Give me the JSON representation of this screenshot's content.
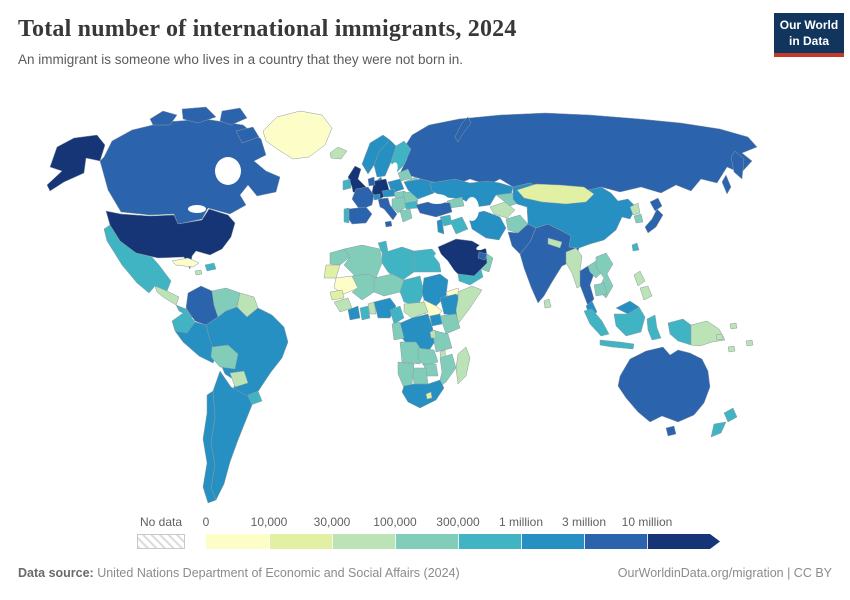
{
  "header": {
    "title": "Total number of international immigrants, 2024",
    "subtitle": "An immigrant is someone who lives in a country that they were not born in.",
    "logo": {
      "line1": "Our World",
      "line2": "in Data",
      "bg_color": "#12355e",
      "accent_color": "#c23a2b"
    }
  },
  "legend": {
    "no_data_label": "No data",
    "tick_labels": [
      "0",
      "10,000",
      "30,000",
      "100,000",
      "300,000",
      "1 million",
      "3 million",
      "10 million"
    ]
  },
  "footer": {
    "source_label": "Data source:",
    "source_text": " United Nations Department of Economic and Social Affairs (2024)",
    "link_text": "OurWorldinData.org/migration | CC BY"
  },
  "map": {
    "ocean_color": "#ffffff",
    "border_color": "#8e9ba6",
    "no_data_color": "#ececec"
  },
  "chart_data": {
    "type": "heatmap",
    "subtype": "world-choropleth",
    "title": "Total number of international immigrants, 2024",
    "year": 2024,
    "unit": "people",
    "legend_position": "bottom",
    "bin_edges": [
      "0",
      "10,000",
      "30,000",
      "100,000",
      "300,000",
      "1 million",
      "3 million",
      "10 million"
    ],
    "bin_labels": [
      "0–10,000",
      "10,000–30,000",
      "30,000–100,000",
      "100,000–300,000",
      "300,000–1 million",
      "1–3 million",
      "3–10 million",
      "10 million+"
    ],
    "bin_colors": [
      "#fdfdc8",
      "#e1f0a3",
      "#bbe3b5",
      "#82cdb9",
      "#41b4c4",
      "#2590c1",
      "#2b63ac",
      "#153576"
    ],
    "no_data_label": "No data",
    "regions": {
      "usa": {
        "name": "United States",
        "bin": 7
      },
      "canada": {
        "name": "Canada",
        "bin": 6
      },
      "greenland": {
        "name": "Greenland",
        "bin": 0
      },
      "mexico": {
        "name": "Mexico",
        "bin": 4
      },
      "central-america": {
        "name": "Guatemala, Honduras & Nicaragua",
        "bin": 2
      },
      "panama-costarica": {
        "name": "Costa Rica & Panama",
        "bin": 4
      },
      "cuba": {
        "name": "Cuba",
        "bin": 0
      },
      "hispaniola": {
        "name": "Dominican Republic & Haiti",
        "bin": 4
      },
      "jamaica": {
        "name": "Jamaica",
        "bin": 2
      },
      "colombia": {
        "name": "Colombia",
        "bin": 6
      },
      "venezuela": {
        "name": "Venezuela",
        "bin": 3
      },
      "guyanas": {
        "name": "Guyana & Suriname",
        "bin": 2
      },
      "ecuador": {
        "name": "Ecuador",
        "bin": 4
      },
      "peru": {
        "name": "Peru",
        "bin": 5
      },
      "brazil": {
        "name": "Brazil",
        "bin": 5
      },
      "bolivia": {
        "name": "Bolivia",
        "bin": 3
      },
      "paraguay": {
        "name": "Paraguay",
        "bin": 2
      },
      "uruguay": {
        "name": "Uruguay",
        "bin": 4
      },
      "argentina": {
        "name": "Argentina",
        "bin": 5
      },
      "chile": {
        "name": "Chile",
        "bin": 5
      },
      "iceland": {
        "name": "Iceland",
        "bin": 2
      },
      "uk": {
        "name": "United Kingdom",
        "bin": 7
      },
      "ireland": {
        "name": "Ireland",
        "bin": 4
      },
      "norway": {
        "name": "Norway",
        "bin": 5
      },
      "sweden": {
        "name": "Sweden",
        "bin": 5
      },
      "finland": {
        "name": "Finland",
        "bin": 4
      },
      "denmark": {
        "name": "Denmark",
        "bin": 5
      },
      "baltics": {
        "name": "Baltic states",
        "bin": 3
      },
      "belarus": {
        "name": "Belarus",
        "bin": 3
      },
      "poland": {
        "name": "Poland",
        "bin": 5
      },
      "germany": {
        "name": "Germany",
        "bin": 7
      },
      "benelux": {
        "name": "Netherlands & Belgium",
        "bin": 6
      },
      "france": {
        "name": "France",
        "bin": 6
      },
      "spain": {
        "name": "Spain",
        "bin": 6
      },
      "portugal": {
        "name": "Portugal",
        "bin": 4
      },
      "italy": {
        "name": "Italy",
        "bin": 6
      },
      "switzerland": {
        "name": "Switzerland",
        "bin": 5
      },
      "austria-czechia": {
        "name": "Austria & Czechia",
        "bin": 5
      },
      "hungary-slovakia": {
        "name": "Hungary & Slovakia",
        "bin": 3
      },
      "balkans": {
        "name": "Western Balkans",
        "bin": 3
      },
      "romania": {
        "name": "Romania",
        "bin": 3
      },
      "bulgaria": {
        "name": "Bulgaria",
        "bin": 4
      },
      "greece": {
        "name": "Greece",
        "bin": 3
      },
      "ukraine": {
        "name": "Ukraine",
        "bin": 5
      },
      "russia": {
        "name": "Russia",
        "bin": 6
      },
      "kazakhstan": {
        "name": "Kazakhstan",
        "bin": 5
      },
      "caucasus": {
        "name": "Caucasus",
        "bin": 3
      },
      "turkmenistan": {
        "name": "Turkmenistan",
        "bin": 2
      },
      "uzbekistan": {
        "name": "Uzbekistan",
        "bin": 3
      },
      "kyrgyz-tajik": {
        "name": "Kyrgyzstan & Tajikistan",
        "bin": 3
      },
      "turkey": {
        "name": "Turkey",
        "bin": 6
      },
      "syria": {
        "name": "Syria",
        "bin": 4
      },
      "iraq": {
        "name": "Iraq",
        "bin": 4
      },
      "levant": {
        "name": "Israel, Jordan & Lebanon",
        "bin": 5
      },
      "iran": {
        "name": "Iran",
        "bin": 5
      },
      "afghanistan": {
        "name": "Afghanistan",
        "bin": 3
      },
      "pakistan": {
        "name": "Pakistan",
        "bin": 6
      },
      "india": {
        "name": "India",
        "bin": 6
      },
      "nepal": {
        "name": "Nepal",
        "bin": 2
      },
      "bangladesh": {
        "name": "Bangladesh",
        "bin": 4
      },
      "sri-lanka": {
        "name": "Sri Lanka",
        "bin": 2
      },
      "china": {
        "name": "China",
        "bin": 5
      },
      "mongolia": {
        "name": "Mongolia",
        "bin": 1
      },
      "taiwan": {
        "name": "Taiwan",
        "bin": 4
      },
      "north-korea": {
        "name": "North Korea",
        "bin": 2
      },
      "south-korea": {
        "name": "South Korea",
        "bin": 3
      },
      "japan": {
        "name": "Japan",
        "bin": 6
      },
      "myanmar": {
        "name": "Myanmar",
        "bin": 2
      },
      "thailand": {
        "name": "Thailand",
        "bin": 6
      },
      "laos": {
        "name": "Laos",
        "bin": 3
      },
      "vietnam": {
        "name": "Vietnam",
        "bin": 3
      },
      "cambodia": {
        "name": "Cambodia",
        "bin": 3
      },
      "malaysia": {
        "name": "Malaysia",
        "bin": 5
      },
      "indonesia": {
        "name": "Indonesia",
        "bin": 4
      },
      "png": {
        "name": "Papua New Guinea",
        "bin": 2
      },
      "philippines": {
        "name": "Philippines",
        "bin": 2
      },
      "pacific-islands": {
        "name": "Pacific islands",
        "bin": 2
      },
      "australia": {
        "name": "Australia",
        "bin": 6
      },
      "new-zealand": {
        "name": "New Zealand",
        "bin": 4
      },
      "morocco": {
        "name": "Morocco",
        "bin": 3
      },
      "western-sahara": {
        "name": "Western Sahara",
        "bin": 1
      },
      "algeria": {
        "name": "Algeria",
        "bin": 3
      },
      "tunisia": {
        "name": "Tunisia",
        "bin": 4
      },
      "libya": {
        "name": "Libya",
        "bin": 4
      },
      "egypt": {
        "name": "Egypt",
        "bin": 4
      },
      "mauritania": {
        "name": "Mauritania",
        "bin": 0
      },
      "mali": {
        "name": "Mali",
        "bin": 3
      },
      "niger": {
        "name": "Niger",
        "bin": 3
      },
      "chad": {
        "name": "Chad",
        "bin": 4
      },
      "sudan": {
        "name": "Sudan",
        "bin": 5
      },
      "south-sudan": {
        "name": "South Sudan",
        "bin": 0
      },
      "eritrea": {
        "name": "Eritrea",
        "bin": 0
      },
      "senegal": {
        "name": "Senegal",
        "bin": 1
      },
      "guinea": {
        "name": "Guinea region",
        "bin": 2
      },
      "ivory-coast": {
        "name": "Côte d'Ivoire",
        "bin": 5
      },
      "ghana": {
        "name": "Ghana",
        "bin": 4
      },
      "benin-togo": {
        "name": "Benin & Togo",
        "bin": 2
      },
      "nigeria": {
        "name": "Nigeria",
        "bin": 5
      },
      "cameroon": {
        "name": "Cameroon",
        "bin": 4
      },
      "car": {
        "name": "Central African Republic",
        "bin": 2
      },
      "ethiopia": {
        "name": "Ethiopia",
        "bin": 5
      },
      "somalia": {
        "name": "Somalia",
        "bin": 2
      },
      "kenya": {
        "name": "Kenya",
        "bin": 3
      },
      "uganda": {
        "name": "Uganda",
        "bin": 5
      },
      "drc": {
        "name": "Democratic Republic of Congo",
        "bin": 5
      },
      "congo-gabon": {
        "name": "Congo & Gabon",
        "bin": 3
      },
      "tanzania": {
        "name": "Tanzania",
        "bin": 3
      },
      "rwanda-burundi": {
        "name": "Rwanda & Burundi",
        "bin": 2
      },
      "angola": {
        "name": "Angola",
        "bin": 3
      },
      "zambia": {
        "name": "Zambia",
        "bin": 3
      },
      "malawi": {
        "name": "Malawi",
        "bin": 2
      },
      "mozambique": {
        "name": "Mozambique",
        "bin": 3
      },
      "zimbabwe": {
        "name": "Zimbabwe",
        "bin": 3
      },
      "botswana": {
        "name": "Botswana",
        "bin": 3
      },
      "namibia": {
        "name": "Namibia",
        "bin": 3
      },
      "south-africa": {
        "name": "South Africa",
        "bin": 5
      },
      "lesotho": {
        "name": "Lesotho",
        "bin": 1
      },
      "madagascar": {
        "name": "Madagascar",
        "bin": 2
      },
      "saudi-arabia": {
        "name": "Saudi Arabia",
        "bin": 7
      },
      "yemen": {
        "name": "Yemen",
        "bin": 4
      },
      "oman": {
        "name": "Oman",
        "bin": 3
      },
      "uae-qatar": {
        "name": "United Arab Emirates & Qatar",
        "bin": 6
      }
    }
  }
}
